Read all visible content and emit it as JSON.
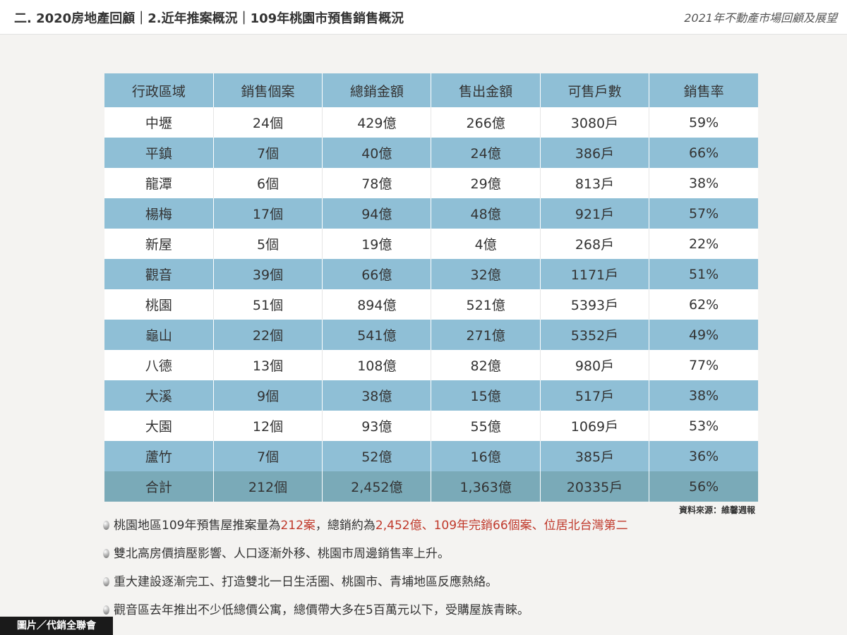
{
  "header": {
    "title": "二. 2020房地產回顧｜2.近年推案概況｜109年桃園市預售銷售概況",
    "subtitle": "2021年不動產市場回顧及展望"
  },
  "table": {
    "columns": [
      "行政區域",
      "銷售個案",
      "總銷金額",
      "售出金額",
      "可售戶數",
      "銷售率"
    ],
    "rows": [
      [
        "中壢",
        "24個",
        "429億",
        "266億",
        "3080戶",
        "59%"
      ],
      [
        "平鎮",
        "7個",
        "40億",
        "24億",
        "386戶",
        "66%"
      ],
      [
        "龍潭",
        "6個",
        "78億",
        "29億",
        "813戶",
        "38%"
      ],
      [
        "楊梅",
        "17個",
        "94億",
        "48億",
        "921戶",
        "57%"
      ],
      [
        "新屋",
        "5個",
        "19億",
        "4億",
        "268戶",
        "22%"
      ],
      [
        "觀音",
        "39個",
        "66億",
        "32億",
        "1171戶",
        "51%"
      ],
      [
        "桃園",
        "51個",
        "894億",
        "521億",
        "5393戶",
        "62%"
      ],
      [
        "龜山",
        "22個",
        "541億",
        "271億",
        "5352戶",
        "49%"
      ],
      [
        "八德",
        "13個",
        "108億",
        "82億",
        "980戶",
        "77%"
      ],
      [
        "大溪",
        "9個",
        "38億",
        "15億",
        "517戶",
        "38%"
      ],
      [
        "大園",
        "12個",
        "93億",
        "55億",
        "1069戶",
        "53%"
      ],
      [
        "蘆竹",
        "7個",
        "52億",
        "16億",
        "385戶",
        "36%"
      ]
    ],
    "total": [
      "合計",
      "212個",
      "2,452億",
      "1,363億",
      "20335戶",
      "56%"
    ]
  },
  "source": "資料來源：維馨週報",
  "bullets": [
    {
      "prefix": "桃園地區109年預售屋推案量為",
      "highlight1": "212案",
      "middle": "，總銷約為",
      "highlight2": "2,452億、109年完銷66個案、位居北台灣第二"
    },
    {
      "text": "雙北高房價擠壓影響、人口逐漸外移、桃園市周邊銷售率上升。"
    },
    {
      "text": "重大建設逐漸完工、打造雙北一日生活圈、桃園市、青埔地區反應熱絡。"
    },
    {
      "text": "觀音區去年推出不少低總價公寓，總價帶大多在5百萬元以下，受購屋族青睞。"
    }
  ],
  "credit": "圖片／代銷全聯會",
  "colors": {
    "header_row": "#8fbfd6",
    "alt_row": "#8fbfd6",
    "total_row": "#7aaab8",
    "highlight": "#c0392b"
  }
}
